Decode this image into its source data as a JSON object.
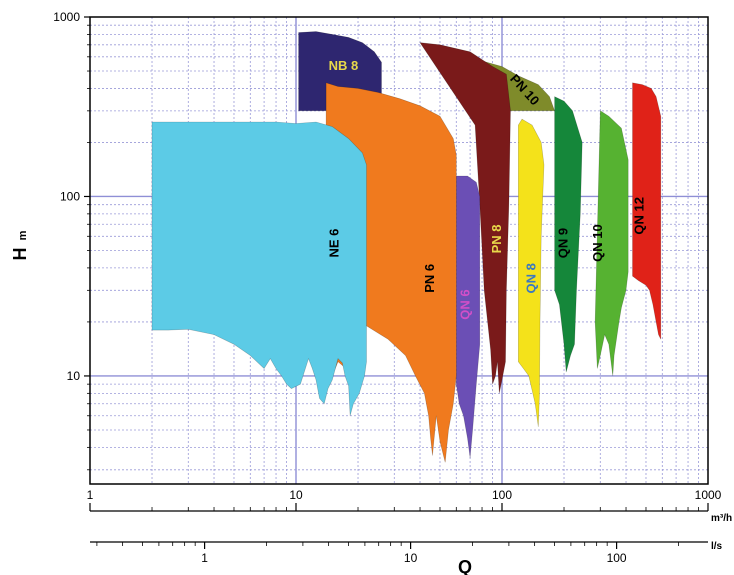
{
  "chart_data": {
    "type": "area",
    "title": "",
    "xlabel": "Q",
    "ylabel": "H",
    "ylabel_unit": "m",
    "x_scale": "log",
    "y_scale": "log",
    "xlim": [
      1,
      1000
    ],
    "ylim": [
      2.5,
      1000
    ],
    "grid": true,
    "x_unit_primary": "m³/h",
    "x_unit_secondary": "l/s",
    "x_ticks": [
      "1",
      "10",
      "100",
      "1000"
    ],
    "x_ticks_secondary": [
      "1",
      "10",
      "100"
    ],
    "y_ticks": [
      "10",
      "100",
      "1000"
    ],
    "series": [
      {
        "name": "NB 8",
        "color": "#2e2670",
        "label_color": "#e8d84a",
        "points": [
          [
            10.3,
            820
          ],
          [
            12.5,
            830
          ],
          [
            15,
            800
          ],
          [
            18,
            770
          ],
          [
            21,
            720
          ],
          [
            24,
            640
          ],
          [
            26,
            560
          ],
          [
            26,
            300
          ],
          [
            10.3,
            300
          ]
        ]
      },
      {
        "name": "PN 10",
        "color": "#7f8b2a",
        "label_color": "#000000",
        "points": [
          [
            74,
            560
          ],
          [
            82,
            565
          ],
          [
            100,
            530
          ],
          [
            120,
            470
          ],
          [
            150,
            420
          ],
          [
            170,
            360
          ],
          [
            180,
            300
          ],
          [
            74,
            300
          ]
        ]
      },
      {
        "name": "QN 12",
        "color": "#e02218",
        "label_color": "#000000",
        "points": [
          [
            430,
            430
          ],
          [
            480,
            420
          ],
          [
            530,
            400
          ],
          [
            560,
            360
          ],
          [
            590,
            280
          ],
          [
            590,
            16
          ],
          [
            575,
            17
          ],
          [
            560,
            20
          ],
          [
            540,
            25
          ],
          [
            520,
            30
          ],
          [
            500,
            32
          ],
          [
            460,
            34
          ],
          [
            430,
            36
          ]
        ]
      },
      {
        "name": "QN 10",
        "color": "#56b231",
        "label_color": "#000000",
        "points": [
          [
            300,
            300
          ],
          [
            330,
            280
          ],
          [
            380,
            240
          ],
          [
            410,
            160
          ],
          [
            410,
            38
          ],
          [
            400,
            30
          ],
          [
            380,
            24
          ],
          [
            370,
            20
          ],
          [
            350,
            13
          ],
          [
            345,
            10
          ],
          [
            330,
            15
          ],
          [
            315,
            17
          ],
          [
            300,
            13
          ],
          [
            290,
            11
          ],
          [
            283,
            20
          ]
        ]
      },
      {
        "name": "QN 9",
        "color": "#15873a",
        "label_color": "#000000",
        "points": [
          [
            180,
            360
          ],
          [
            200,
            340
          ],
          [
            220,
            300
          ],
          [
            245,
            200
          ],
          [
            240,
            80
          ],
          [
            230,
            30
          ],
          [
            225,
            15
          ],
          [
            215,
            13
          ],
          [
            205,
            10.5
          ],
          [
            200,
            15
          ],
          [
            190,
            25
          ],
          [
            180,
            30
          ]
        ]
      },
      {
        "name": "PN 8",
        "color": "#7a1a1a",
        "label_color": "#e8d84a",
        "points": [
          [
            40,
            720
          ],
          [
            50,
            700
          ],
          [
            70,
            640
          ],
          [
            90,
            530
          ],
          [
            105,
            480
          ],
          [
            110,
            300
          ],
          [
            108,
            90
          ],
          [
            105,
            30
          ],
          [
            104,
            12
          ],
          [
            100,
            9.5
          ],
          [
            97,
            8
          ],
          [
            95,
            12
          ],
          [
            93,
            10
          ],
          [
            90,
            9
          ],
          [
            88,
            14
          ],
          [
            82,
            30
          ],
          [
            78,
            90
          ],
          [
            74,
            250
          ]
        ]
      },
      {
        "name": "QN 8",
        "color": "#f4e21a",
        "label_color": "#3a78c0",
        "points": [
          [
            120,
            250
          ],
          [
            125,
            270
          ],
          [
            140,
            250
          ],
          [
            155,
            200
          ],
          [
            160,
            150
          ],
          [
            155,
            60
          ],
          [
            153,
            20
          ],
          [
            152,
            8
          ],
          [
            150,
            5.2
          ],
          [
            145,
            7
          ],
          [
            135,
            10
          ],
          [
            127,
            11
          ],
          [
            120,
            12
          ]
        ]
      },
      {
        "name": "QN 6",
        "color": "#6b4fb5",
        "label_color": "#d14fc8",
        "points": [
          [
            60,
            130
          ],
          [
            68,
            130
          ],
          [
            75,
            120
          ],
          [
            78,
            100
          ],
          [
            78,
            15
          ],
          [
            75,
            9
          ],
          [
            72,
            5
          ],
          [
            70,
            3.5
          ],
          [
            68,
            4.5
          ],
          [
            65,
            6
          ],
          [
            62,
            7
          ],
          [
            60,
            9
          ]
        ]
      },
      {
        "name": "PN 6",
        "color": "#f07a1e",
        "label_color": "#000000",
        "points": [
          [
            14,
            430
          ],
          [
            16,
            410
          ],
          [
            20,
            400
          ],
          [
            25,
            380
          ],
          [
            32,
            350
          ],
          [
            40,
            320
          ],
          [
            50,
            280
          ],
          [
            58,
            210
          ],
          [
            60,
            170
          ],
          [
            60,
            10
          ],
          [
            58,
            7
          ],
          [
            55,
            5
          ],
          [
            53,
            3.3
          ],
          [
            50,
            4.3
          ],
          [
            48,
            6
          ],
          [
            46,
            3.6
          ],
          [
            45,
            4.5
          ],
          [
            44,
            6
          ],
          [
            42,
            8
          ],
          [
            38,
            10
          ],
          [
            34,
            13
          ],
          [
            28,
            16
          ],
          [
            22,
            19
          ],
          [
            19,
            20
          ],
          [
            18,
            9
          ],
          [
            17.5,
            11
          ],
          [
            16,
            12
          ],
          [
            15,
            10
          ],
          [
            14,
            11
          ],
          [
            14,
            300
          ]
        ]
      },
      {
        "name": "NE 6",
        "color": "#5ccbe6",
        "label_color": "#000000",
        "points": [
          [
            2,
            260
          ],
          [
            4,
            260
          ],
          [
            8,
            260
          ],
          [
            10,
            255
          ],
          [
            12.5,
            260
          ],
          [
            15,
            245
          ],
          [
            18,
            210
          ],
          [
            21,
            175
          ],
          [
            22,
            150
          ],
          [
            22,
            12
          ],
          [
            21.5,
            10
          ],
          [
            20.3,
            8
          ],
          [
            19,
            7
          ],
          [
            18.3,
            6
          ],
          [
            18,
            8.8
          ],
          [
            17.3,
            10
          ],
          [
            17,
            11
          ],
          [
            16.8,
            11.8
          ],
          [
            16,
            12.5
          ],
          [
            15,
            9.5
          ],
          [
            14.3,
            8.5
          ],
          [
            13.7,
            7
          ],
          [
            13,
            7.5
          ],
          [
            12.5,
            9.5
          ],
          [
            12,
            11
          ],
          [
            11.5,
            12.5
          ],
          [
            10.5,
            9
          ],
          [
            9.5,
            8.5
          ],
          [
            9,
            9
          ],
          [
            8.5,
            10
          ],
          [
            8,
            11
          ],
          [
            7.5,
            12.5
          ],
          [
            7,
            11
          ],
          [
            6,
            13
          ],
          [
            5,
            15
          ],
          [
            4,
            17
          ],
          [
            3,
            18.2
          ],
          [
            2.4,
            18
          ],
          [
            2,
            18
          ]
        ]
      }
    ],
    "labels": [
      {
        "series": "NB 8",
        "x": 17,
        "y": 530,
        "rotate": 0
      },
      {
        "series": "PN 10",
        "x": 128,
        "y": 390,
        "rotate": 48
      },
      {
        "series": "NE 6",
        "x": 15.5,
        "y": 55,
        "rotate": -90
      },
      {
        "series": "PN 6",
        "x": 45,
        "y": 35,
        "rotate": -90
      },
      {
        "series": "QN 6",
        "x": 67,
        "y": 25,
        "rotate": -90
      },
      {
        "series": "PN 8",
        "x": 95,
        "y": 58,
        "rotate": -90
      },
      {
        "series": "QN 8",
        "x": 140,
        "y": 35,
        "rotate": -90
      },
      {
        "series": "QN 9",
        "x": 200,
        "y": 55,
        "rotate": -90
      },
      {
        "series": "QN 10",
        "x": 295,
        "y": 55,
        "rotate": -90
      },
      {
        "series": "QN 12",
        "x": 468,
        "y": 78,
        "rotate": -90
      }
    ]
  }
}
